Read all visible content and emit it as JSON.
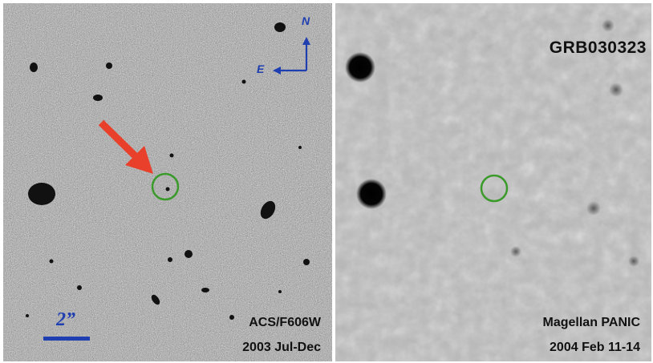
{
  "left_panel": {
    "instrument": "ACS/F606W",
    "date": "2003 Jul-Dec",
    "scale_label": "2”",
    "compass": {
      "north": "N",
      "east": "E"
    }
  },
  "right_panel": {
    "title": "GRB030323",
    "instrument": "Magellan PANIC",
    "date": "2004 Feb 11-14"
  },
  "colors": {
    "marker_circle": "#3a9a2a",
    "arrow": "#e8402a",
    "compass": "#1f3fb0"
  },
  "icons": [
    "red-arrow-icon",
    "compass-icon",
    "scale-bar-icon",
    "grb-host-circle-icon"
  ]
}
